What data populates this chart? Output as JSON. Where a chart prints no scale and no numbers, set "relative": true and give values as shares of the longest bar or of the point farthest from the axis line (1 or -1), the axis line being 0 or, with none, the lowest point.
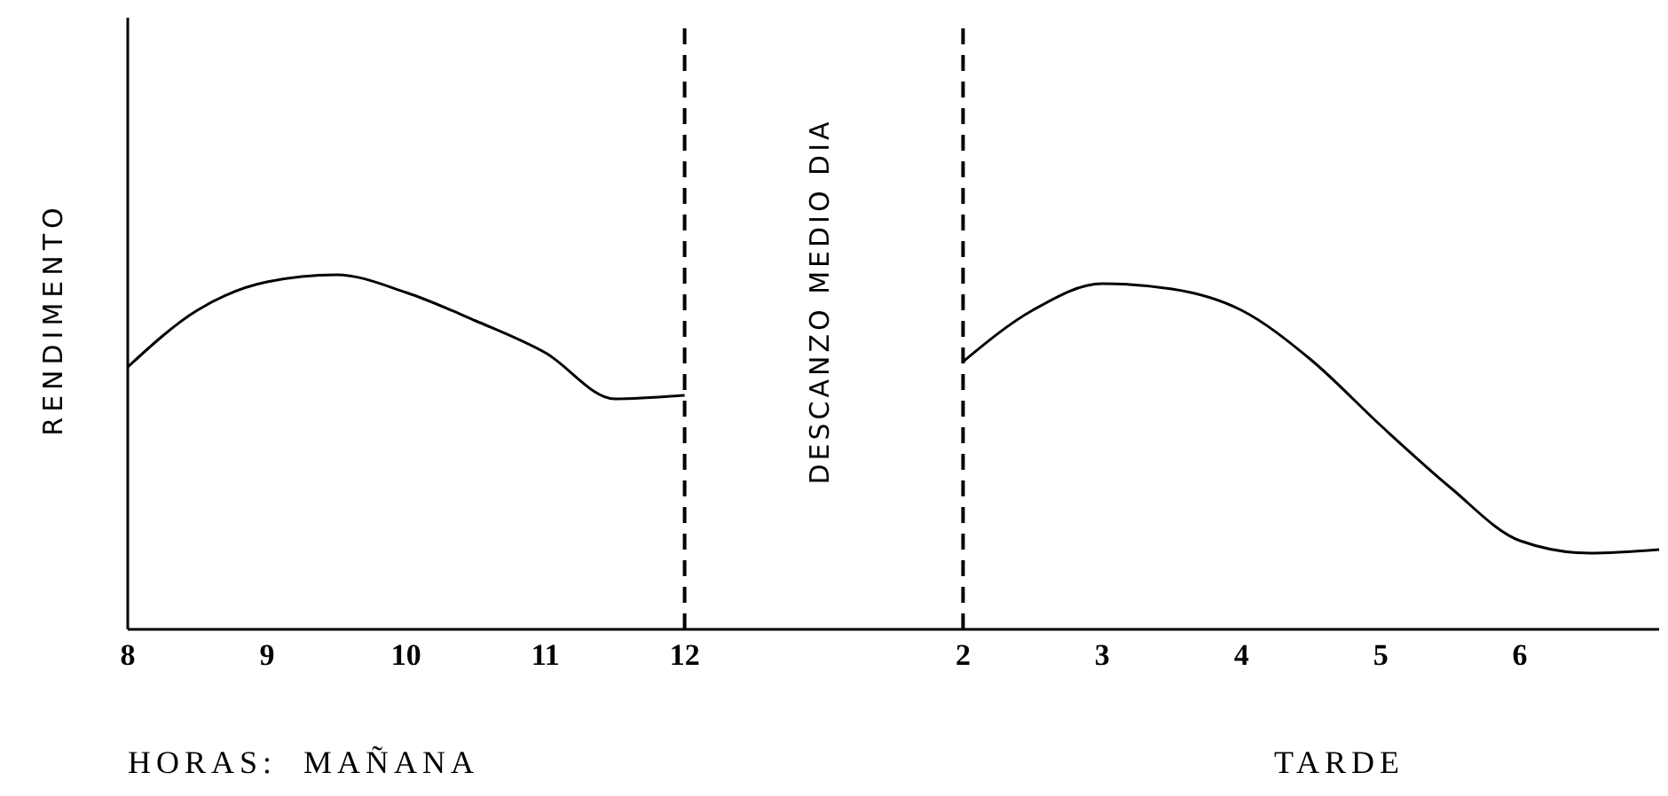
{
  "chart_data": {
    "type": "line",
    "relative": true,
    "ylabel": "RENDIMENTO",
    "xlabel": "HORAS:  MAÑANA",
    "annotations": [
      "TARDE",
      "DESCANZO MEDIO DIA"
    ],
    "categories": [
      "8",
      null,
      "9",
      null,
      "10",
      null,
      "11",
      null,
      "12",
      null,
      null,
      null,
      "2",
      null,
      "3",
      null,
      "4",
      null,
      "5",
      null,
      "6",
      null,
      null
    ],
    "series": [
      {
        "color": "#000000",
        "values": [
          0.74,
          0.9,
          0.98,
          1.0,
          0.95,
          0.87,
          0.78,
          0.65,
          0.66,
          null,
          null,
          null,
          0.755,
          0.9,
          0.975,
          0.96,
          0.9,
          0.76,
          0.575,
          0.4,
          0.25,
          0.215,
          0.225
        ]
      }
    ],
    "ref_lines": [
      {
        "axis": "x",
        "value": "12",
        "line_style": "dashed",
        "color": "#000000"
      },
      {
        "axis": "x",
        "value": "2",
        "line_style": "dashed",
        "color": "#000000"
      }
    ],
    "grid": false,
    "marker": "none",
    "line_style": "solid"
  }
}
